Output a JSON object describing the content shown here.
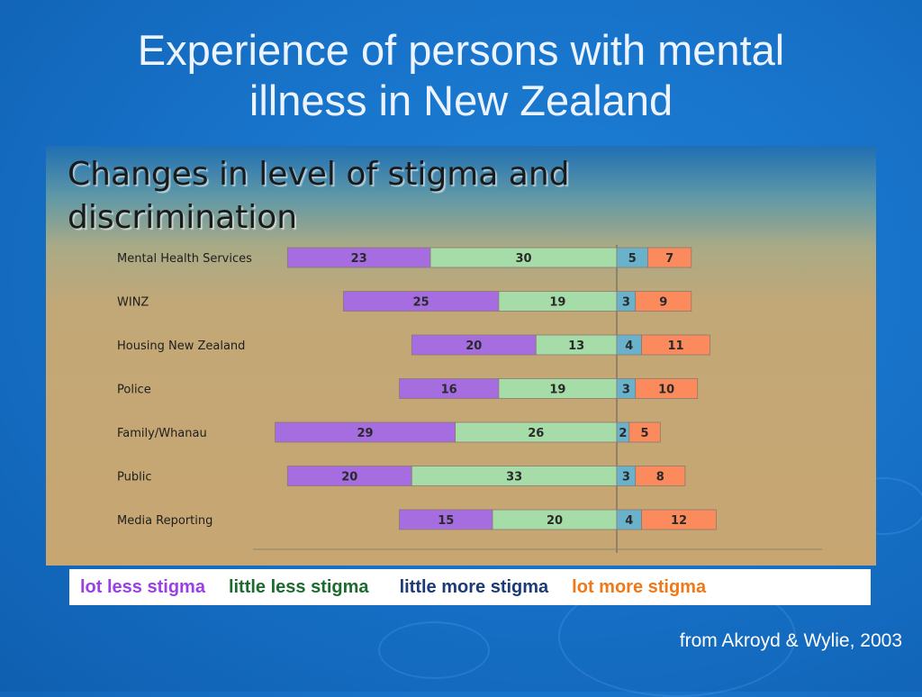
{
  "slide": {
    "title_line1": "Experience of persons with mental",
    "title_line2": "illness in New Zealand",
    "source": "from Akroyd & Wylie, 2003"
  },
  "colors": {
    "lot_less": "#a56de0",
    "little_less": "#a6dca8",
    "little_more": "#6ab2cc",
    "lot_more": "#fb8a5c",
    "legend_lot_less": "#9b3ee8",
    "legend_little_less": "#1c6b2e",
    "legend_little_more": "#1b3a78",
    "legend_lot_more": "#f07818"
  },
  "chart_data": {
    "type": "bar",
    "orientation": "horizontal-diverging",
    "title_line1": "Changes in level of stigma and",
    "title_line2": "discrimination",
    "categories": [
      "Mental Health Services",
      "WINZ",
      "Housing New Zealand",
      "Police",
      "Family/Whanau",
      "Public",
      "Media Reporting"
    ],
    "series": [
      {
        "name": "lot less stigma",
        "side": "left",
        "values": [
          23,
          25,
          20,
          16,
          29,
          20,
          15
        ]
      },
      {
        "name": "little less stigma",
        "side": "left",
        "values": [
          30,
          19,
          13,
          19,
          26,
          33,
          20
        ]
      },
      {
        "name": "little more stigma",
        "side": "right",
        "values": [
          5,
          3,
          4,
          3,
          2,
          3,
          4
        ]
      },
      {
        "name": "lot more stigma",
        "side": "right",
        "values": [
          7,
          9,
          11,
          10,
          5,
          8,
          12
        ]
      }
    ],
    "legend_placement": "bottom"
  }
}
